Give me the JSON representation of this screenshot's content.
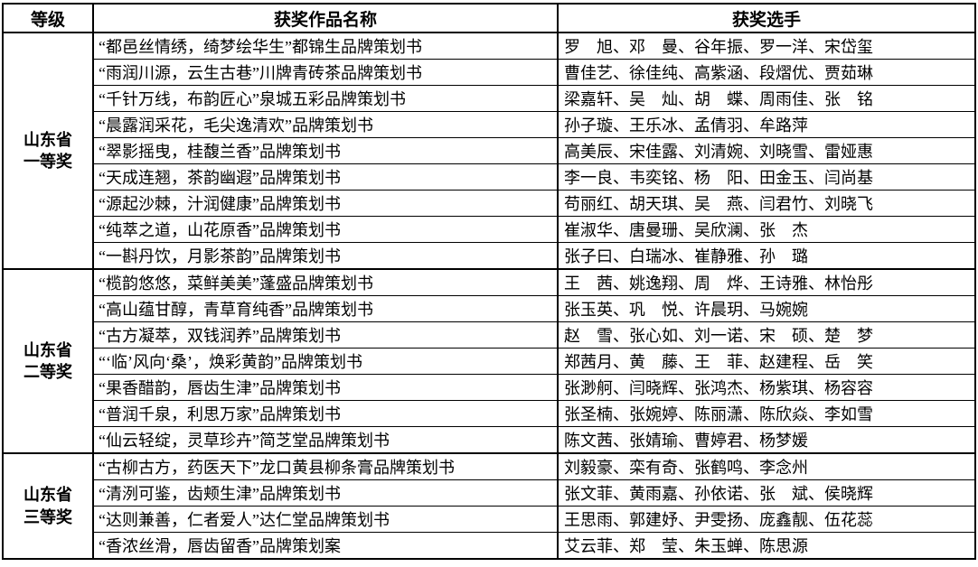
{
  "colors": {
    "border": "#000000",
    "background": "#ffffff",
    "text": "#000000"
  },
  "table": {
    "headers": [
      "等级",
      "获奖作品名称",
      "获奖选手"
    ],
    "sections": [
      {
        "grade_lines": [
          "山东省",
          "一等奖"
        ],
        "rows": [
          {
            "work": "“都邑丝情绣，绮梦绘华生”都锦生品牌策划书",
            "winners": "罗　旭、邓　曼、谷年振、罗一洋、宋岱玺"
          },
          {
            "work": "“雨润川源，云生古巷”川牌青砖茶品牌策划书",
            "winners": "曹佳艺、徐佳纯、高紫涵、段熠优、贾茹琳"
          },
          {
            "work": "“千针万线，布韵匠心”泉城五彩品牌策划书",
            "winners": "梁嘉轩、吴　灿、胡　蝶、周雨佳、张　铭"
          },
          {
            "work": "“晨露润采花，毛尖逸清欢”品牌策划书",
            "winners": "孙子璇、王乐冰、孟倩羽、牟路萍"
          },
          {
            "work": "“翠影摇曳，桂馥兰香”品牌策划书",
            "winners": "高美辰、宋佳露、刘清婉、刘晓雪、雷娅惠"
          },
          {
            "work": "“天成连翘，茶韵幽遐”品牌策划书",
            "winners": "李一良、韦奕铭、杨　阳、田金玉、闫尚基"
          },
          {
            "work": "“源起沙棘，汁润健康”品牌策划书",
            "winners": "苟丽红、胡天琪、吴　燕、闫君竹、刘晓飞"
          },
          {
            "work": "“纯萃之道，山花原香”品牌策划书",
            "winners": "崔淑华、唐曼珊、吴欣澜、张　杰"
          },
          {
            "work": "“一斟丹饮，月影茶韵”品牌策划书",
            "winners": "张子曰、白瑞冰、崔静雅、孙　璐"
          }
        ]
      },
      {
        "grade_lines": [
          "山东省",
          "二等奖"
        ],
        "rows": [
          {
            "work": "“榄韵悠悠，菜鲜美美”蓬盛品牌策划书",
            "winners": "王　茜、姚逸翔、周　烨、王诗雅、林怡彤"
          },
          {
            "work": "“高山蕴甘醇，青草育纯香”品牌策划书",
            "winners": "张玉英、巩　悦、许晨玥、马婉婉"
          },
          {
            "work": "“古方凝萃，双钱润养”品牌策划书",
            "winners": "赵　雪、张心如、刘一诺、宋　硕、楚　梦"
          },
          {
            "work": "“‘临’风向‘桑’，焕彩黄韵”品牌策划书",
            "winners": "郑茜月、黄　藤、王　菲、赵建程、岳　笑"
          },
          {
            "work": "“果香醋韵，唇齿生津”品牌策划书",
            "winners": "张渺舸、闫晓辉、张鸿杰、杨紫琪、杨容容"
          },
          {
            "work": "“普润千泉，利思万家”品牌策划书",
            "winners": "张圣楠、张婉婷、陈丽潇、陈欣焱、李如雪"
          },
          {
            "work": "“仙云轻绽，灵草珍卉”简芝堂品牌策划书",
            "winners": "陈文茜、张婧瑜、曹婷君、杨梦媛"
          }
        ]
      },
      {
        "grade_lines": [
          "山东省",
          "三等奖"
        ],
        "rows": [
          {
            "work": "“古柳古方，药医天下”龙口黄县柳条膏品牌策划书",
            "winners": "刘毅豪、栾有奇、张鹤鸣、李念州"
          },
          {
            "work": "“清洌可鉴，齿颊生津”品牌策划书",
            "winners": "张文菲、黄雨嘉、孙依诺、张　斌、侯晓辉"
          },
          {
            "work": "“达则兼善，仁者爱人”达仁堂品牌策划书",
            "winners": "王思雨、郭建妤、尹雯扬、庞鑫靓、伍花蕊"
          },
          {
            "work": "“香浓丝滑，唇齿留香”品牌策划案",
            "winners": "艾云菲、郑　莹、朱玉蝉、陈思源"
          }
        ]
      }
    ]
  }
}
